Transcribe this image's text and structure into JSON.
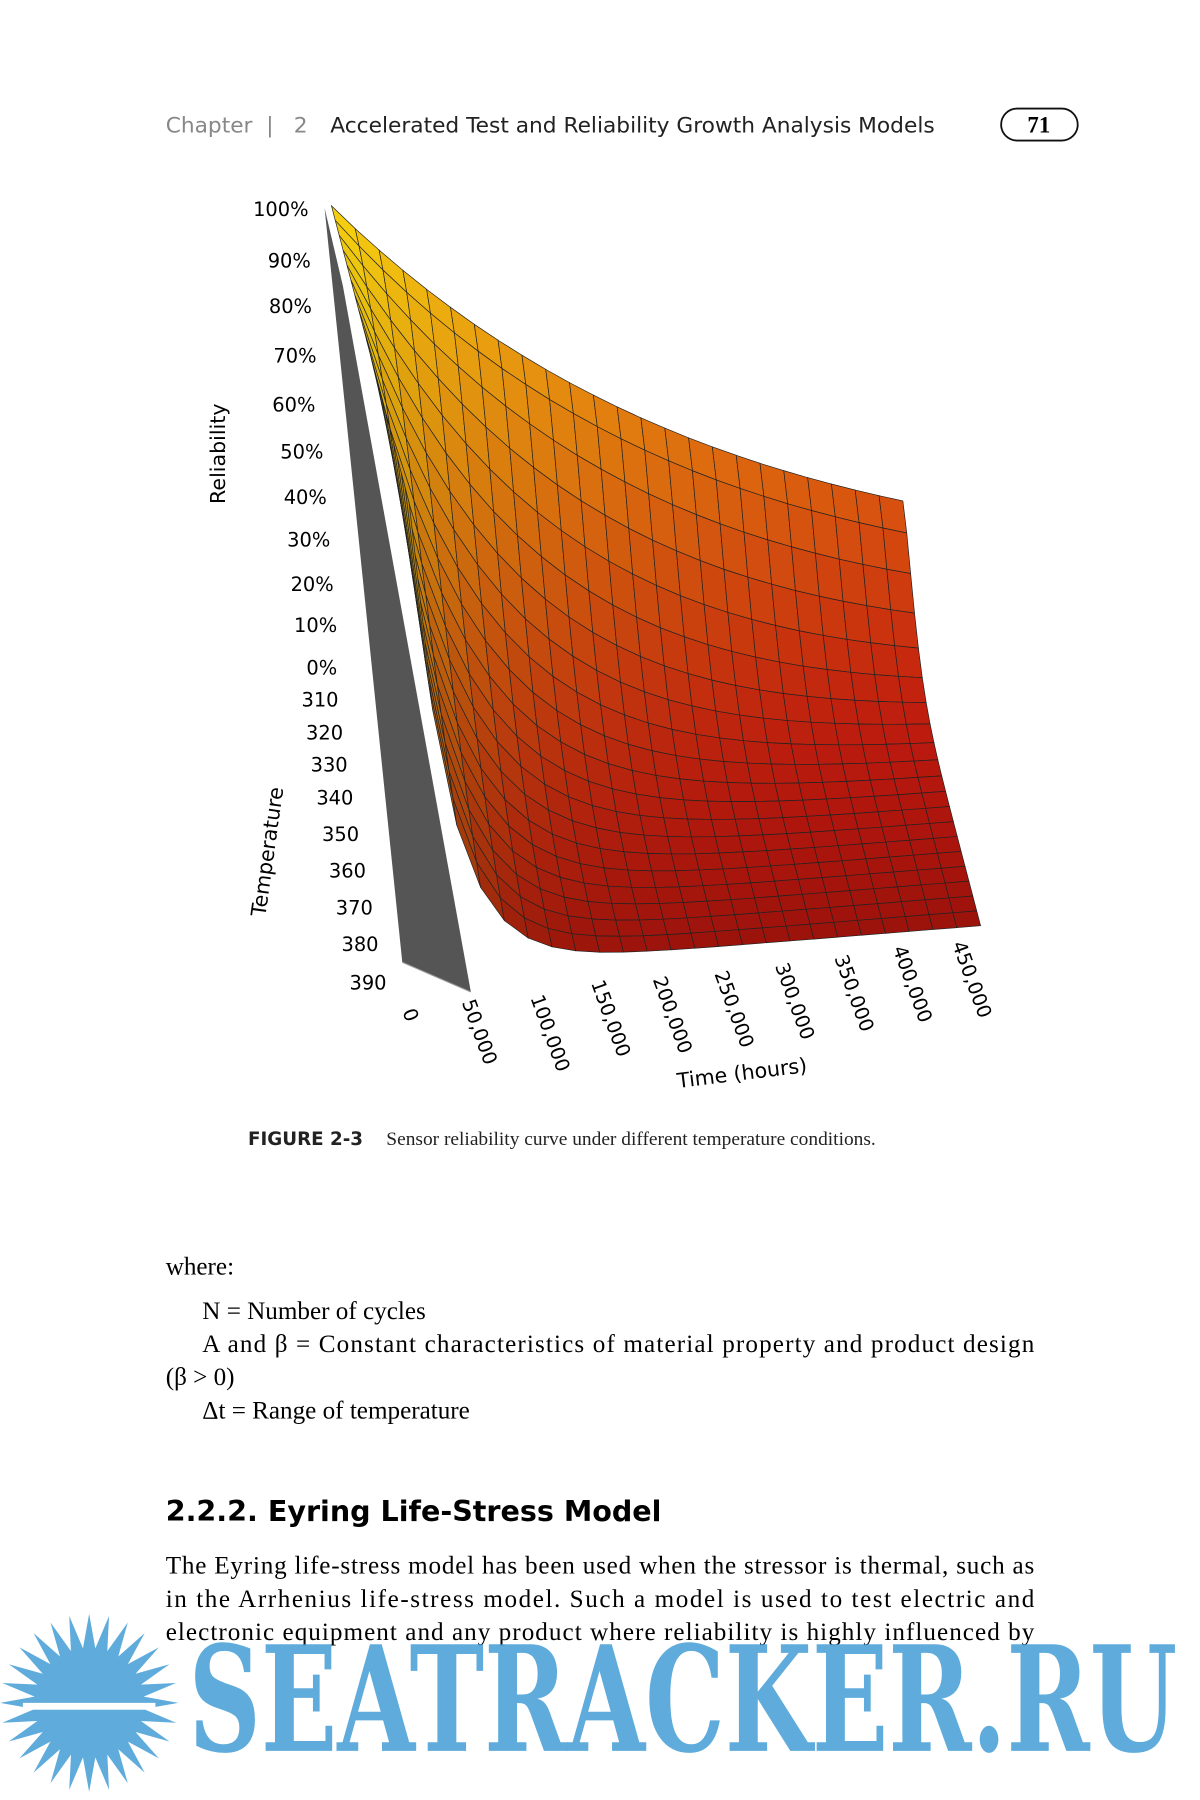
{
  "header": {
    "chapter": "Chapter",
    "separator": "|",
    "number": "2",
    "title": "Accelerated Test and Reliability Growth Analysis Models",
    "page": "71"
  },
  "figure": {
    "y_label": "Reliability",
    "z_label": "Temperature",
    "x_label": "Time (hours)",
    "reliability_ticks": [
      "100%",
      "90%",
      "80%",
      "70%",
      "60%",
      "50%",
      "40%",
      "30%",
      "20%",
      "10%",
      "0%"
    ],
    "temperature_ticks": [
      "310",
      "320",
      "330",
      "340",
      "350",
      "360",
      "370",
      "380",
      "390"
    ],
    "time_ticks": [
      "0",
      "50,000",
      "100,000",
      "150,000",
      "200,000",
      "250,000",
      "300,000",
      "350,000",
      "400,000",
      "450,000"
    ],
    "caption_label": "FIGURE 2-3",
    "caption": "Sensor reliability curve under different temperature conditions."
  },
  "body": {
    "intro": "where:",
    "definitions": [
      "N = Number of cycles",
      "A and β = Constant characteristics of material property and product design",
      "(β > 0)",
      "Δt = Range of temperature"
    ],
    "section_heading": "2.2.2. Eyring Life-Stress Model",
    "paragraph_lines": [
      "The Eyring life-stress model has been used when the stressor is thermal, such as",
      "in the Arrhenius life-stress model. Such a model is used to test electric and",
      "electronic equipment and any product where reliability is highly influenced by"
    ]
  },
  "watermark": "SEATRACKER.RU"
}
